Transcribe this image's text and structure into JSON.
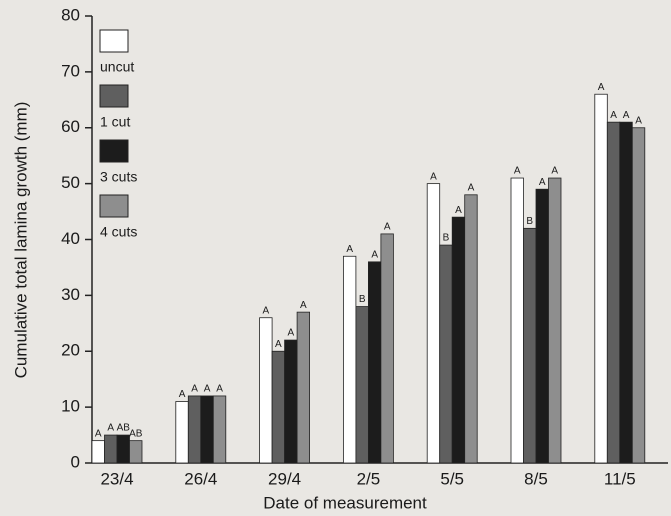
{
  "chart_data": {
    "type": "bar",
    "y_label": "Cumulative total lamina growth (mm)",
    "x_label": "Date of measurement",
    "categories": [
      "23/4",
      "26/4",
      "29/4",
      "2/5",
      "5/5",
      "8/5",
      "11/5"
    ],
    "series": [
      {
        "name": "uncut",
        "color": "#ffffff",
        "values": [
          4,
          11,
          26,
          37,
          50,
          51,
          66
        ],
        "letters": [
          "A",
          "A",
          "A",
          "A",
          "A",
          "A",
          "A"
        ]
      },
      {
        "name": "1 cut",
        "color": "#5f5f5f",
        "values": [
          5,
          12,
          20,
          28,
          39,
          42,
          61
        ],
        "letters": [
          "A",
          "A",
          "A",
          "B",
          "B",
          "B",
          "A"
        ]
      },
      {
        "name": "3 cuts",
        "color": "#1c1c1c",
        "values": [
          5,
          12,
          22,
          36,
          44,
          49,
          61
        ],
        "letters": [
          "AB",
          "A",
          "A",
          "A",
          "A",
          "A",
          "A"
        ]
      },
      {
        "name": "4 cuts",
        "color": "#8e8e8e",
        "values": [
          4,
          12,
          27,
          41,
          48,
          51,
          60
        ],
        "letters": [
          "AB",
          "A",
          "A",
          "A",
          "A",
          "A",
          "A"
        ]
      }
    ],
    "ylim": [
      0,
      80
    ],
    "yticks": [
      0,
      10,
      20,
      30,
      40,
      50,
      60,
      70,
      80
    ]
  }
}
